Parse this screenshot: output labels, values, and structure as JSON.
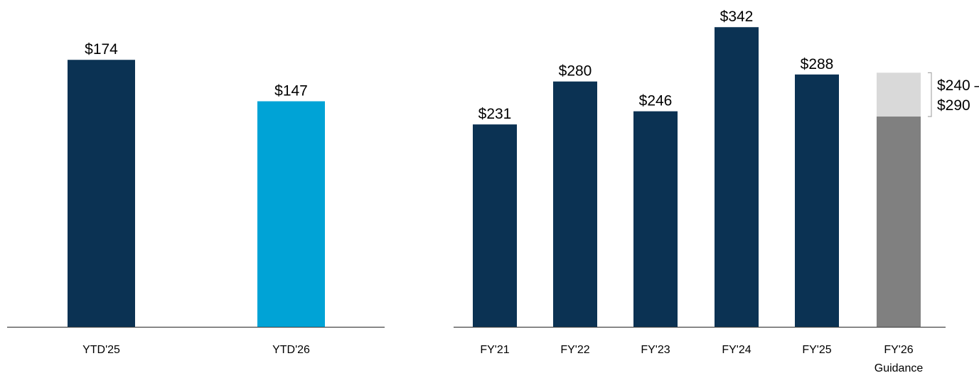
{
  "chart_data": [
    {
      "type": "bar",
      "categories": [
        "YTD'25",
        "YTD'26"
      ],
      "values": [
        174,
        147
      ],
      "value_labels": [
        "$174",
        "$147"
      ],
      "colors": [
        "#0b3253",
        "#00a3d6"
      ],
      "ylim": [
        0,
        213
      ]
    },
    {
      "type": "bar",
      "categories": [
        "FY'21",
        "FY'22",
        "FY'23",
        "FY'24",
        "FY'25",
        "FY'26 Guidance"
      ],
      "values": [
        231,
        280,
        246,
        342,
        288,
        null
      ],
      "value_labels": [
        "$231",
        "$280",
        "$246",
        "$342",
        "$288",
        null
      ],
      "color": "#0b3253",
      "ylim": [
        0,
        373
      ],
      "guidance": {
        "low": 240,
        "high": 290,
        "label": "$240 – $290",
        "low_color": "#808080",
        "high_color": "#d9d9d9"
      }
    }
  ]
}
